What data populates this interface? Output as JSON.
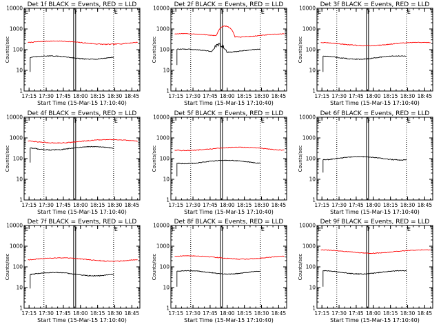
{
  "chart_data": [
    {
      "type": "line",
      "title": "Det 1f BLACK = Events, RED = LLD",
      "xlabel": "Start Time (15-Mar-15 17:10:40)",
      "ylabel": "Counts/sec",
      "x_ticks": [
        "17:15",
        "17:30",
        "17:45",
        "18:00",
        "18:15",
        "18:30",
        "18:45"
      ],
      "y_ticks": [
        "1",
        "10",
        "100",
        "1000",
        "10000"
      ],
      "xlim": [
        "17:10:40",
        "18:52"
      ],
      "ylim": [
        1,
        10000
      ],
      "y_scale": "log",
      "markers": [
        "E",
        "F",
        "E"
      ],
      "series": [
        {
          "color": "#ff0000",
          "start": "17:14",
          "end": "18:50",
          "level": 220
        },
        {
          "color": "#000000",
          "start": "17:16",
          "end": "18:29",
          "level": 42
        }
      ]
    },
    {
      "type": "line",
      "title": "Det 2f BLACK = Events, RED = LLD",
      "xlabel": "Start Time (15-Mar-15 17:10:40)",
      "ylabel": "Counts/sec",
      "x_ticks": [
        "17:15",
        "17:30",
        "17:45",
        "18:00",
        "18:15",
        "18:30",
        "18:45"
      ],
      "y_ticks": [
        "1",
        "10",
        "100",
        "1000",
        "10000"
      ],
      "xlim": [
        "17:10:40",
        "18:52"
      ],
      "ylim": [
        1,
        10000
      ],
      "y_scale": "log",
      "markers": [
        "E",
        "F",
        "E"
      ],
      "series": [
        {
          "color": "#ff0000",
          "start": "17:14",
          "end": "18:50",
          "level": 500
        },
        {
          "color": "#000000",
          "start": "17:16",
          "end": "18:29",
          "level": 90
        }
      ]
    },
    {
      "type": "line",
      "title": "Det 3f BLACK = Events, RED = LLD",
      "xlabel": "Start Time (15-Mar-15 17:10:40)",
      "ylabel": "Counts/sec",
      "x_ticks": [
        "17:15",
        "17:30",
        "17:45",
        "18:00",
        "18:15",
        "18:30",
        "18:45"
      ],
      "y_ticks": [
        "1",
        "10",
        "100",
        "1000",
        "10000"
      ],
      "xlim": [
        "17:10:40",
        "18:52"
      ],
      "ylim": [
        1,
        10000
      ],
      "y_scale": "log",
      "markers": [
        "E",
        "F",
        "E"
      ],
      "series": [
        {
          "color": "#ff0000",
          "start": "17:14",
          "end": "18:50",
          "level": 190
        },
        {
          "color": "#000000",
          "start": "17:16",
          "end": "18:29",
          "level": 42
        }
      ]
    },
    {
      "type": "line",
      "title": "Det 4f BLACK = Events, RED = LLD",
      "xlabel": "Start Time (15-Mar-15 17:10:40)",
      "ylabel": "Counts/sec",
      "x_ticks": [
        "17:15",
        "17:30",
        "17:45",
        "18:00",
        "18:15",
        "18:30",
        "18:45"
      ],
      "y_ticks": [
        "1",
        "10",
        "100",
        "1000",
        "10000"
      ],
      "xlim": [
        "17:10:40",
        "18:52"
      ],
      "ylim": [
        1,
        10000
      ],
      "y_scale": "log",
      "markers": [
        "E",
        "F",
        "E"
      ],
      "series": [
        {
          "color": "#ff0000",
          "start": "17:14",
          "end": "18:50",
          "level": 700
        },
        {
          "color": "#000000",
          "start": "17:16",
          "end": "18:29",
          "level": 320
        }
      ]
    },
    {
      "type": "line",
      "title": "Det 5f BLACK = Events, RED = LLD",
      "xlabel": "Start Time (15-Mar-15 17:10:40)",
      "ylabel": "Counts/sec",
      "x_ticks": [
        "17:15",
        "17:30",
        "17:45",
        "18:00",
        "18:15",
        "18:30",
        "18:45"
      ],
      "y_ticks": [
        "1",
        "10",
        "100",
        "1000",
        "10000"
      ],
      "xlim": [
        "17:10:40",
        "18:52"
      ],
      "ylim": [
        1,
        10000
      ],
      "y_scale": "log",
      "markers": [
        "E",
        "F",
        "E"
      ],
      "series": [
        {
          "color": "#ff0000",
          "start": "17:14",
          "end": "18:50",
          "level": 300
        },
        {
          "color": "#000000",
          "start": "17:16",
          "end": "18:29",
          "level": 70
        }
      ]
    },
    {
      "type": "line",
      "title": "Det 6f BLACK = Events, RED = LLD",
      "xlabel": "Start Time (15-Mar-15 17:10:40)",
      "ylabel": "Counts/sec",
      "x_ticks": [
        "17:15",
        "17:30",
        "17:45",
        "18:00",
        "18:15",
        "18:30",
        "18:45"
      ],
      "y_ticks": [
        "1",
        "10",
        "100",
        "1000",
        "10000"
      ],
      "xlim": [
        "17:10:40",
        "18:52"
      ],
      "ylim": [
        1,
        10000
      ],
      "y_scale": "log",
      "markers": [
        "E",
        "F",
        "E"
      ],
      "series": [
        {
          "color": "#000000",
          "start": "17:16",
          "end": "18:29",
          "level": 105
        }
      ]
    },
    {
      "type": "line",
      "title": "Det 7f BLACK = Events, RED = LLD",
      "xlabel": "Start Time (15-Mar-15 17:10:40)",
      "ylabel": "Counts/sec",
      "x_ticks": [
        "17:15",
        "17:30",
        "17:45",
        "18:00",
        "18:15",
        "18:30",
        "18:45"
      ],
      "y_ticks": [
        "1",
        "10",
        "100",
        "1000",
        "10000"
      ],
      "xlim": [
        "17:10:40",
        "18:52"
      ],
      "ylim": [
        1,
        10000
      ],
      "y_scale": "log",
      "markers": [
        "E",
        "F",
        "E"
      ],
      "series": [
        {
          "color": "#ff0000",
          "start": "17:14",
          "end": "18:50",
          "level": 230
        },
        {
          "color": "#000000",
          "start": "17:16",
          "end": "18:29",
          "level": 45
        }
      ]
    },
    {
      "type": "line",
      "title": "Det 8f BLACK = Events, RED = LLD",
      "xlabel": "Start Time (15-Mar-15 17:10:40)",
      "ylabel": "Counts/sec",
      "x_ticks": [
        "17:15",
        "17:30",
        "17:45",
        "18:00",
        "18:15",
        "18:30",
        "18:45"
      ],
      "y_ticks": [
        "1",
        "10",
        "100",
        "1000",
        "10000"
      ],
      "xlim": [
        "17:10:40",
        "18:52"
      ],
      "ylim": [
        1,
        10000
      ],
      "y_scale": "log",
      "markers": [
        "E",
        "F",
        "E"
      ],
      "series": [
        {
          "color": "#ff0000",
          "start": "17:14",
          "end": "18:50",
          "level": 290
        },
        {
          "color": "#000000",
          "start": "17:16",
          "end": "18:29",
          "level": 55
        }
      ]
    },
    {
      "type": "line",
      "title": "Det 9f BLACK = Events, RED = LLD",
      "xlabel": "Start Time (15-Mar-15 17:10:40)",
      "ylabel": "Counts/sec",
      "x_ticks": [
        "17:15",
        "17:30",
        "17:45",
        "18:00",
        "18:15",
        "18:30",
        "18:45"
      ],
      "y_ticks": [
        "1",
        "10",
        "100",
        "1000",
        "10000"
      ],
      "xlim": [
        "17:10:40",
        "18:52"
      ],
      "ylim": [
        1,
        10000
      ],
      "y_scale": "log",
      "markers": [
        "E",
        "F",
        "E"
      ],
      "series": [
        {
          "color": "#ff0000",
          "start": "17:14",
          "end": "18:50",
          "level": 560
        },
        {
          "color": "#000000",
          "start": "17:16",
          "end": "18:29",
          "level": 55
        }
      ]
    }
  ]
}
